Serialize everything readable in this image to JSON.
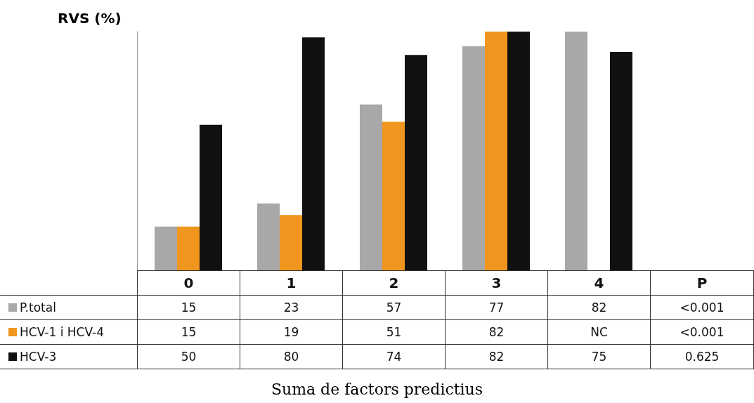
{
  "chart_data": {
    "type": "bar",
    "ylabel": "RVS (%)",
    "legend": "bottom left",
    "categories": [
      "0",
      "1",
      "2",
      "3",
      "4"
    ],
    "series": [
      {
        "name": "P.total",
        "color": "#a8a8a8",
        "values": [
          15,
          23,
          57,
          77,
          82
        ],
        "value_labels": [
          "15",
          "23",
          "57",
          "77",
          "82"
        ]
      },
      {
        "name": "HCV-1 i HCV-4",
        "color": "#f0961e",
        "values": [
          15,
          19,
          51,
          82,
          null
        ],
        "value_labels": [
          "15",
          "19",
          "51",
          "82",
          "NC"
        ]
      },
      {
        "name": "HCV-3",
        "color": "#111111",
        "values": [
          50,
          80,
          74,
          82,
          75
        ],
        "value_labels": [
          "50",
          "80",
          "74",
          "82",
          "75"
        ]
      }
    ],
    "annotations": [
      "P",
      "<0.001",
      "<0.001",
      "0.625",
      "Suma de factors predictius"
    ]
  }
}
